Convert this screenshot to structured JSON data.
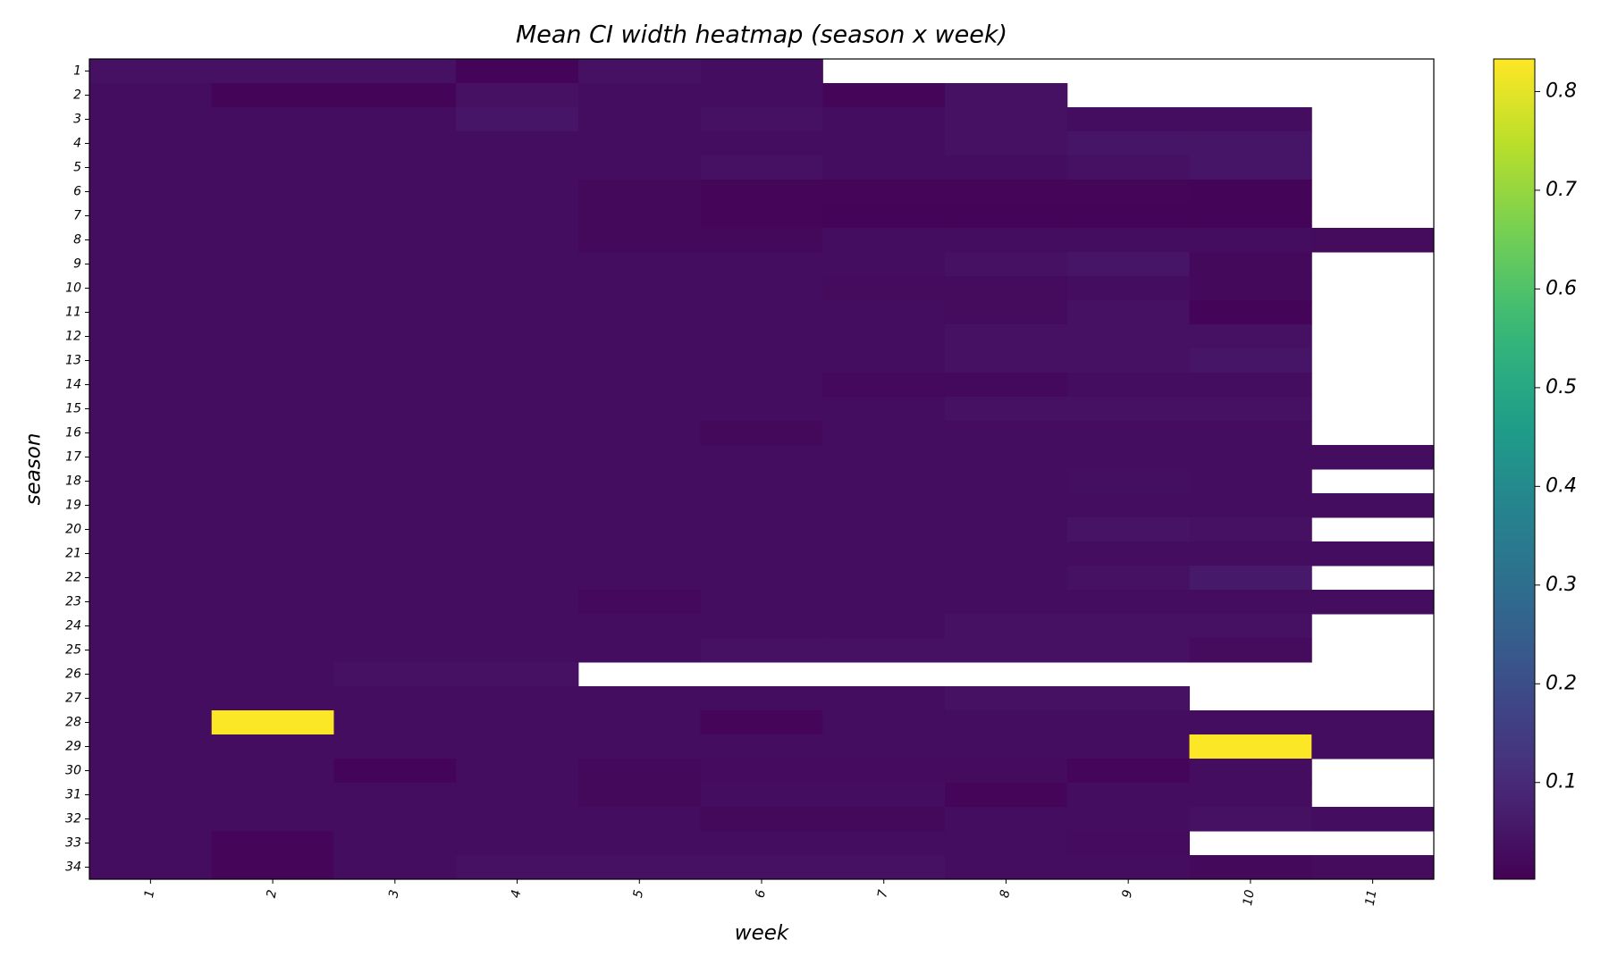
{
  "chart_data": {
    "type": "heatmap",
    "title": "Mean CI width heatmap (season x week)",
    "x_label": "week",
    "y_label": "season",
    "x_categories": [
      1,
      2,
      3,
      4,
      5,
      6,
      7,
      8,
      9,
      10,
      11
    ],
    "y_categories": [
      1,
      2,
      3,
      4,
      5,
      6,
      7,
      8,
      9,
      10,
      11,
      12,
      13,
      14,
      15,
      16,
      17,
      18,
      19,
      20,
      21,
      22,
      23,
      24,
      25,
      26,
      27,
      28,
      29,
      30,
      31,
      32,
      33,
      34
    ],
    "colormap": "viridis",
    "clim": [
      0.002,
      0.833
    ],
    "cticks": [
      0.1,
      0.2,
      0.3,
      0.4,
      0.5,
      0.6,
      0.7,
      0.8
    ],
    "values": [
      [
        0.04,
        0.04,
        0.04,
        0.01,
        0.04,
        0.03,
        null,
        null,
        null,
        null,
        null
      ],
      [
        0.03,
        0.01,
        0.01,
        0.04,
        0.03,
        0.03,
        0.015,
        0.04,
        null,
        null,
        null
      ],
      [
        0.03,
        0.03,
        0.03,
        0.05,
        0.03,
        0.04,
        0.03,
        0.04,
        0.03,
        0.03,
        null
      ],
      [
        0.03,
        0.03,
        0.03,
        0.03,
        0.03,
        0.03,
        0.03,
        0.04,
        0.05,
        0.05,
        null
      ],
      [
        0.03,
        0.03,
        0.03,
        0.03,
        0.03,
        0.04,
        0.03,
        0.03,
        0.04,
        0.05,
        null
      ],
      [
        0.03,
        0.03,
        0.03,
        0.03,
        0.02,
        0.015,
        0.015,
        0.015,
        0.015,
        0.01,
        null
      ],
      [
        0.03,
        0.03,
        0.03,
        0.03,
        0.02,
        0.015,
        0.01,
        0.01,
        0.01,
        0.01,
        null
      ],
      [
        0.03,
        0.03,
        0.03,
        0.03,
        0.02,
        0.02,
        0.03,
        0.03,
        0.03,
        0.03,
        0.025
      ],
      [
        0.03,
        0.03,
        0.03,
        0.03,
        0.03,
        0.03,
        0.03,
        0.04,
        0.05,
        0.02,
        null
      ],
      [
        0.03,
        0.03,
        0.03,
        0.03,
        0.03,
        0.03,
        0.025,
        0.025,
        0.03,
        0.02,
        null
      ],
      [
        0.03,
        0.03,
        0.03,
        0.03,
        0.03,
        0.03,
        0.03,
        0.025,
        0.04,
        0.01,
        null
      ],
      [
        0.03,
        0.03,
        0.03,
        0.03,
        0.03,
        0.03,
        0.03,
        0.04,
        0.04,
        0.04,
        null
      ],
      [
        0.03,
        0.03,
        0.03,
        0.03,
        0.03,
        0.03,
        0.03,
        0.04,
        0.04,
        0.05,
        null
      ],
      [
        0.03,
        0.03,
        0.03,
        0.03,
        0.03,
        0.03,
        0.02,
        0.02,
        0.03,
        0.03,
        null
      ],
      [
        0.03,
        0.03,
        0.03,
        0.03,
        0.03,
        0.03,
        0.03,
        0.04,
        0.04,
        0.04,
        null
      ],
      [
        0.03,
        0.03,
        0.03,
        0.03,
        0.03,
        0.02,
        0.03,
        0.03,
        0.03,
        0.03,
        null
      ],
      [
        0.03,
        0.03,
        0.03,
        0.03,
        0.03,
        0.03,
        0.03,
        0.03,
        0.03,
        0.03,
        0.03
      ],
      [
        0.03,
        0.03,
        0.03,
        0.03,
        0.03,
        0.03,
        0.03,
        0.03,
        0.035,
        0.03,
        null
      ],
      [
        0.03,
        0.03,
        0.03,
        0.03,
        0.03,
        0.03,
        0.03,
        0.03,
        0.03,
        0.03,
        0.03
      ],
      [
        0.03,
        0.03,
        0.03,
        0.03,
        0.03,
        0.03,
        0.03,
        0.03,
        0.045,
        0.04,
        null
      ],
      [
        0.03,
        0.03,
        0.03,
        0.03,
        0.03,
        0.03,
        0.03,
        0.03,
        0.03,
        0.03,
        0.03
      ],
      [
        0.03,
        0.03,
        0.03,
        0.03,
        0.03,
        0.03,
        0.03,
        0.03,
        0.04,
        0.06,
        null
      ],
      [
        0.03,
        0.03,
        0.03,
        0.03,
        0.02,
        0.03,
        0.03,
        0.03,
        0.03,
        0.03,
        0.03
      ],
      [
        0.03,
        0.03,
        0.03,
        0.03,
        0.03,
        0.03,
        0.03,
        0.04,
        0.04,
        0.04,
        null
      ],
      [
        0.03,
        0.03,
        0.03,
        0.03,
        0.03,
        0.04,
        0.04,
        0.04,
        0.04,
        0.025,
        null
      ],
      [
        0.03,
        0.03,
        0.04,
        0.04,
        null,
        null,
        null,
        null,
        null,
        null,
        null
      ],
      [
        0.03,
        0.03,
        0.03,
        0.03,
        0.03,
        0.03,
        0.03,
        0.04,
        0.04,
        null,
        null
      ],
      [
        0.03,
        0.83,
        0.03,
        0.03,
        0.03,
        0.015,
        0.03,
        0.03,
        0.03,
        0.03,
        0.03
      ],
      [
        0.03,
        0.03,
        0.03,
        0.03,
        0.03,
        0.03,
        0.03,
        0.03,
        0.03,
        0.83,
        0.03
      ],
      [
        0.03,
        0.03,
        0.01,
        0.03,
        0.02,
        0.025,
        0.025,
        0.025,
        0.015,
        0.03,
        null
      ],
      [
        0.03,
        0.03,
        0.03,
        0.03,
        0.02,
        0.03,
        0.03,
        0.015,
        0.03,
        0.03,
        null
      ],
      [
        0.03,
        0.03,
        0.03,
        0.03,
        0.03,
        0.02,
        0.02,
        0.03,
        0.03,
        0.04,
        0.03
      ],
      [
        0.03,
        0.015,
        0.03,
        0.03,
        0.03,
        0.03,
        0.03,
        0.03,
        0.025,
        null,
        null
      ],
      [
        0.03,
        0.015,
        0.03,
        0.04,
        0.04,
        0.04,
        0.04,
        0.03,
        0.03,
        0.02,
        0.025
      ]
    ]
  }
}
